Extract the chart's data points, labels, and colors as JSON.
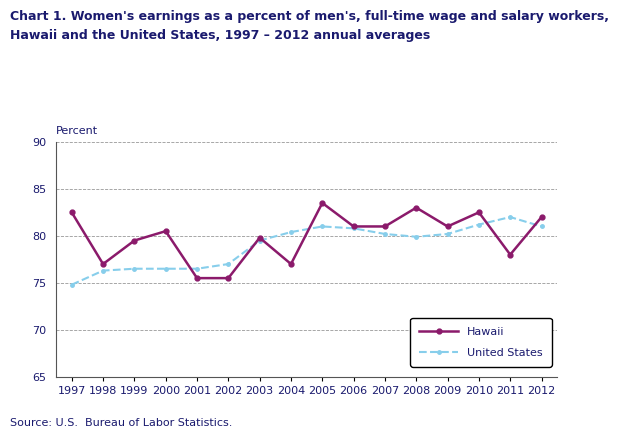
{
  "title_line1": "Chart 1. Women's earnings as a percent of men's, full-time wage and salary workers,",
  "title_line2": "Hawaii and the United States, 1997 – 2012 annual averages",
  "ylabel": "Percent",
  "source": "Source: U.S.  Bureau of Labor Statistics.",
  "years": [
    1997,
    1998,
    1999,
    2000,
    2001,
    2002,
    2003,
    2004,
    2005,
    2006,
    2007,
    2008,
    2009,
    2010,
    2011,
    2012
  ],
  "hawaii": [
    82.5,
    77.0,
    79.5,
    80.5,
    75.5,
    75.5,
    79.8,
    77.0,
    83.5,
    81.0,
    81.0,
    83.0,
    81.0,
    82.5,
    78.0,
    82.0
  ],
  "us": [
    74.8,
    76.3,
    76.5,
    76.5,
    76.5,
    77.0,
    79.5,
    80.4,
    81.0,
    80.8,
    80.2,
    79.9,
    80.2,
    81.2,
    82.0,
    81.0
  ],
  "hawaii_color": "#8B1A6B",
  "us_color": "#87CEEB",
  "ylim": [
    65,
    90
  ],
  "yticks": [
    65,
    70,
    75,
    80,
    85,
    90
  ],
  "grid_color": "#999999",
  "legend_hawaii": "Hawaii",
  "legend_us": "United States",
  "text_color": "#1a1a6e",
  "title_fontsize": 9,
  "tick_fontsize": 8,
  "source_fontsize": 8
}
